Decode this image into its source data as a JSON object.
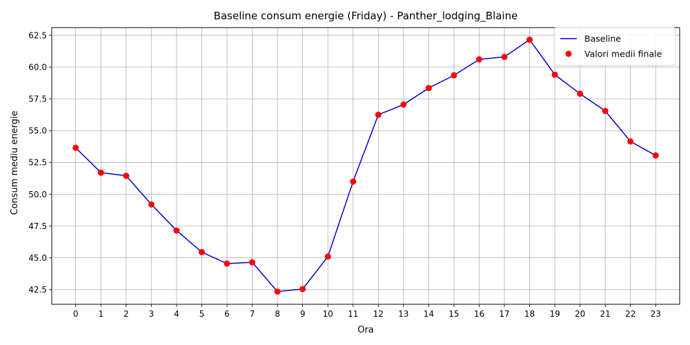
{
  "chart_data": {
    "type": "line",
    "title": "Baseline consum energie (Friday) - Panther_lodging_Blaine",
    "xlabel": "Ora",
    "ylabel": "Consum mediu energie",
    "x": [
      0,
      1,
      2,
      3,
      4,
      5,
      6,
      7,
      8,
      9,
      10,
      11,
      12,
      13,
      14,
      15,
      16,
      17,
      18,
      19,
      20,
      21,
      22,
      23
    ],
    "xticks": [
      "0",
      "1",
      "2",
      "3",
      "4",
      "5",
      "6",
      "7",
      "8",
      "9",
      "10",
      "11",
      "12",
      "13",
      "14",
      "15",
      "16",
      "17",
      "18",
      "19",
      "20",
      "21",
      "22",
      "23"
    ],
    "yticks": [
      42.5,
      45.0,
      47.5,
      50.0,
      52.5,
      55.0,
      57.5,
      60.0,
      62.5
    ],
    "ylim": [
      41.35,
      63.1
    ],
    "xlim": [
      -0.95,
      23.95
    ],
    "grid": true,
    "legend_position": "upper-right",
    "series": [
      {
        "name": "Baseline",
        "style": "line",
        "color": "#0000cc",
        "values": [
          53.65,
          51.7,
          51.45,
          49.2,
          47.15,
          45.45,
          44.55,
          44.65,
          42.35,
          42.55,
          45.1,
          51.0,
          56.25,
          57.05,
          58.35,
          59.35,
          60.6,
          60.8,
          62.15,
          59.4,
          57.9,
          56.55,
          54.15,
          53.05
        ]
      },
      {
        "name": "Valori medii finale",
        "style": "scatter",
        "color": "#ff0000",
        "values": [
          53.65,
          51.7,
          51.45,
          49.2,
          47.15,
          45.45,
          44.55,
          44.65,
          42.35,
          42.55,
          45.1,
          51.0,
          56.25,
          57.05,
          58.35,
          59.35,
          60.6,
          60.8,
          62.15,
          59.4,
          57.9,
          56.55,
          54.15,
          53.05
        ]
      }
    ]
  }
}
